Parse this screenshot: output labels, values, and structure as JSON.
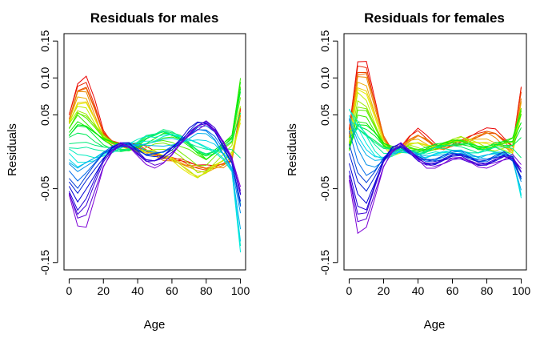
{
  "chart_data": [
    {
      "type": "line",
      "title": "Residuals for males",
      "xlabel": "Age",
      "ylabel": "Residuals",
      "xlim": [
        -3,
        103
      ],
      "ylim": [
        -0.16,
        0.16
      ],
      "xticks": [
        0,
        20,
        40,
        60,
        80,
        100
      ],
      "xtick_labels": [
        "0",
        "20",
        "40",
        "60",
        "80",
        "100"
      ],
      "yticks": [
        -0.15,
        -0.05,
        0.05,
        0.1,
        0.15
      ],
      "ytick_labels": [
        "-0.15",
        "-0.05",
        "0.05",
        "0.10",
        "0.15"
      ],
      "color_scale": "rainbow (red → yellow → green → cyan → blue → violet)",
      "x": [
        0,
        5,
        10,
        15,
        20,
        25,
        30,
        35,
        40,
        45,
        50,
        55,
        60,
        65,
        70,
        75,
        80,
        85,
        90,
        95,
        100
      ],
      "series_shapes": [
        [
          0.05,
          0.09,
          0.1,
          0.07,
          0.03,
          0.015,
          0.01,
          0.01,
          0.01,
          0.005,
          0.0,
          -0.005,
          -0.01,
          -0.01,
          -0.015,
          -0.02,
          -0.02,
          -0.02,
          -0.015,
          -0.01,
          0.06
        ],
        [
          0.04,
          0.08,
          0.08,
          0.05,
          0.02,
          0.01,
          0.01,
          0.005,
          0.005,
          0.0,
          -0.005,
          -0.01,
          -0.01,
          -0.015,
          -0.02,
          -0.02,
          -0.025,
          -0.02,
          -0.02,
          -0.01,
          0.05
        ],
        [
          0.04,
          0.06,
          0.06,
          0.04,
          0.02,
          0.01,
          0.005,
          0.005,
          0.0,
          0.0,
          0.0,
          -0.005,
          -0.01,
          -0.02,
          -0.03,
          -0.04,
          -0.03,
          -0.02,
          -0.01,
          0.0,
          0.04
        ],
        [
          0.03,
          0.05,
          0.04,
          0.03,
          0.02,
          0.015,
          0.01,
          0.01,
          0.005,
          0.01,
          0.015,
          0.02,
          0.02,
          0.015,
          0.01,
          0.0,
          -0.01,
          0.0,
          0.01,
          0.02,
          0.1
        ],
        [
          0.02,
          0.03,
          0.03,
          0.02,
          0.01,
          0.005,
          0.0,
          0.0,
          0.01,
          0.02,
          0.025,
          0.03,
          0.025,
          0.02,
          0.01,
          0.0,
          -0.005,
          0.0,
          0.01,
          0.02,
          0.08
        ],
        [
          0.0,
          -0.01,
          -0.01,
          -0.01,
          -0.005,
          0.0,
          0.005,
          0.01,
          0.015,
          0.02,
          0.02,
          0.025,
          0.025,
          0.02,
          0.015,
          0.01,
          0.005,
          0.0,
          -0.01,
          -0.03,
          -0.15
        ],
        [
          -0.02,
          -0.03,
          -0.02,
          -0.01,
          0.0,
          0.005,
          0.01,
          0.01,
          0.005,
          0.0,
          0.0,
          0.0,
          0.005,
          0.01,
          0.02,
          0.03,
          0.03,
          0.02,
          0.0,
          -0.02,
          -0.08
        ],
        [
          -0.05,
          -0.07,
          -0.05,
          -0.03,
          -0.01,
          0.005,
          0.01,
          0.01,
          0.0,
          -0.01,
          -0.01,
          -0.005,
          0.005,
          0.015,
          0.03,
          0.04,
          0.04,
          0.03,
          0.01,
          -0.01,
          -0.06
        ],
        [
          -0.06,
          -0.1,
          -0.1,
          -0.06,
          -0.02,
          0.0,
          0.01,
          0.005,
          -0.005,
          -0.015,
          -0.02,
          -0.015,
          -0.005,
          0.01,
          0.02,
          0.03,
          0.04,
          0.03,
          0.015,
          -0.01,
          -0.05
        ]
      ]
    },
    {
      "type": "line",
      "title": "Residuals for females",
      "xlabel": "Age",
      "ylabel": "Residuals",
      "xlim": [
        -3,
        103
      ],
      "ylim": [
        -0.16,
        0.16
      ],
      "xticks": [
        0,
        20,
        40,
        60,
        80,
        100
      ],
      "xtick_labels": [
        "0",
        "20",
        "40",
        "60",
        "80",
        "100"
      ],
      "yticks": [
        -0.15,
        -0.05,
        0.05,
        0.1,
        0.15
      ],
      "ytick_labels": [
        "-0.15",
        "-0.05",
        "0.05",
        "0.10",
        "0.15"
      ],
      "color_scale": "rainbow (red → yellow → green → cyan → blue → violet)",
      "x": [
        0,
        5,
        10,
        15,
        20,
        25,
        30,
        35,
        40,
        45,
        50,
        55,
        60,
        65,
        70,
        75,
        80,
        85,
        90,
        95,
        100
      ],
      "series_shapes": [
        [
          0.03,
          0.12,
          0.12,
          0.07,
          0.02,
          0.0,
          0.005,
          0.02,
          0.03,
          0.02,
          0.01,
          0.005,
          0.01,
          0.015,
          0.02,
          0.025,
          0.03,
          0.03,
          0.02,
          0.01,
          0.09
        ],
        [
          0.02,
          0.1,
          0.1,
          0.06,
          0.02,
          0.0,
          0.005,
          0.015,
          0.02,
          0.015,
          0.005,
          0.005,
          0.01,
          0.01,
          0.015,
          0.02,
          0.025,
          0.02,
          0.01,
          0.0,
          0.07
        ],
        [
          0.01,
          0.08,
          0.07,
          0.04,
          0.01,
          -0.005,
          0.0,
          0.01,
          0.01,
          0.005,
          0.005,
          0.01,
          0.015,
          0.02,
          0.015,
          0.01,
          0.005,
          0.0,
          0.0,
          0.0,
          0.05
        ],
        [
          0.0,
          0.05,
          0.05,
          0.03,
          0.01,
          0.005,
          0.005,
          0.005,
          0.0,
          0.0,
          0.005,
          0.01,
          0.015,
          0.015,
          0.01,
          0.005,
          0.005,
          0.01,
          0.015,
          0.02,
          0.06
        ],
        [
          0.01,
          0.03,
          0.025,
          0.02,
          0.01,
          0.005,
          0.005,
          0.0,
          0.0,
          0.005,
          0.01,
          0.01,
          0.01,
          0.01,
          0.01,
          0.005,
          0.005,
          0.01,
          0.01,
          0.01,
          0.03
        ],
        [
          0.06,
          0.04,
          0.02,
          0.0,
          -0.01,
          -0.005,
          0.0,
          0.0,
          -0.005,
          -0.005,
          0.0,
          0.0,
          0.0,
          0.0,
          -0.005,
          -0.005,
          0.0,
          0.0,
          -0.005,
          -0.01,
          -0.07
        ],
        [
          0.04,
          0.0,
          -0.02,
          -0.02,
          -0.01,
          0.0,
          0.005,
          0.0,
          -0.005,
          -0.01,
          -0.01,
          -0.005,
          0.0,
          0.0,
          -0.005,
          -0.01,
          -0.01,
          -0.005,
          0.0,
          -0.01,
          -0.04
        ],
        [
          -0.02,
          -0.06,
          -0.07,
          -0.04,
          -0.01,
          0.005,
          0.01,
          0.0,
          -0.01,
          -0.015,
          -0.015,
          -0.01,
          -0.005,
          -0.005,
          -0.01,
          -0.015,
          -0.015,
          -0.01,
          -0.005,
          -0.01,
          -0.03
        ],
        [
          -0.04,
          -0.11,
          -0.1,
          -0.06,
          -0.02,
          0.0,
          0.01,
          0.0,
          -0.01,
          -0.02,
          -0.02,
          -0.015,
          -0.01,
          -0.01,
          -0.015,
          -0.02,
          -0.02,
          -0.015,
          -0.01,
          -0.005,
          -0.02
        ]
      ]
    }
  ]
}
